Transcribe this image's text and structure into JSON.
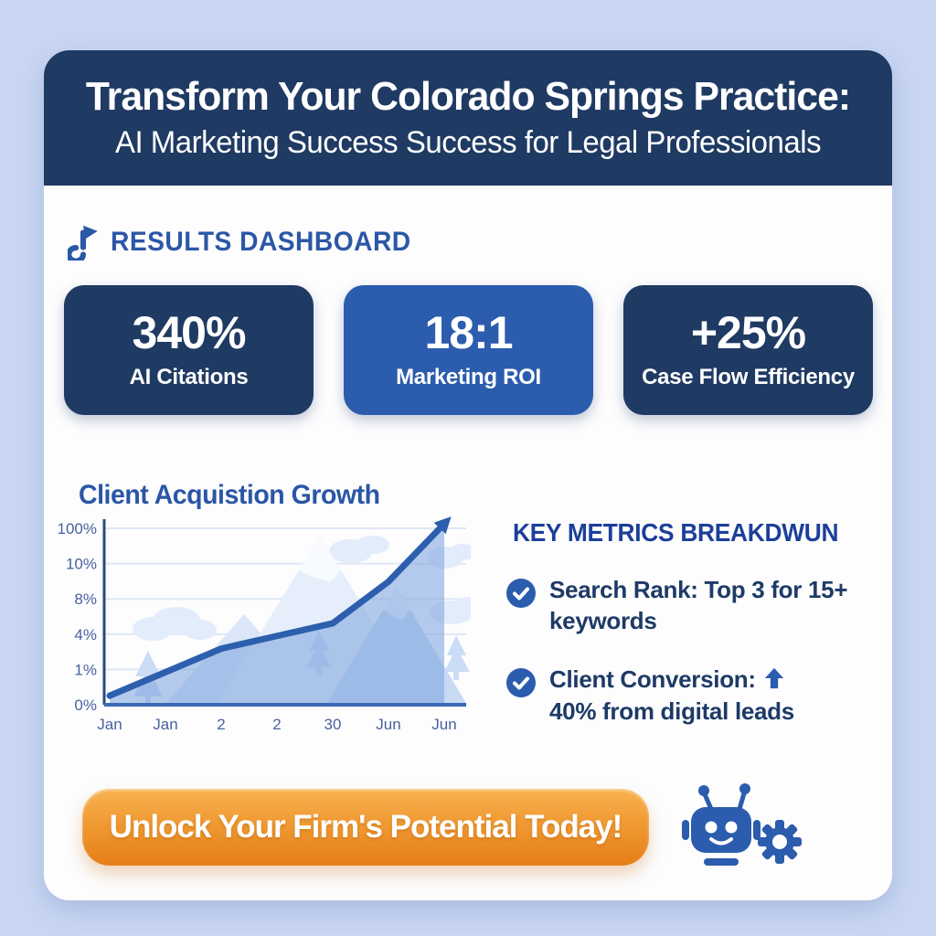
{
  "header": {
    "title": "Transform Your Colorado Springs Practice:",
    "subtitle": "AI Marketing Success Success for Legal Professionals"
  },
  "results_section": {
    "title": "RESULTS DASHBOARD",
    "icon": "note-arrow-icon"
  },
  "stats": [
    {
      "value": "340%",
      "label": "AI Citations"
    },
    {
      "value": "18:1",
      "label": "Marketing ROI"
    },
    {
      "value": "+25%",
      "label": "Case Flow Efficiency"
    }
  ],
  "chart_data": {
    "type": "area",
    "title": "Client Acquistion Growth",
    "x": [
      "Jan",
      "Jan",
      "2",
      "2",
      "30",
      "Jun",
      "Jun"
    ],
    "y_tick_labels": [
      "100%",
      "10%",
      "8%",
      "4%",
      "1%",
      "0%"
    ],
    "series": [
      {
        "name": "Client acquisition growth line",
        "values": [
          5,
          18,
          31,
          38,
          45,
          68,
          100
        ],
        "values_unit": "percent of plot height (axis labels are decorative/non-linear)"
      }
    ],
    "ylim": [
      0,
      100
    ],
    "grid": true,
    "legend": false,
    "line_color": "#2d5fae",
    "area_color": "#7fa6de",
    "annotations": [
      "line ends in an upward-pointing arrow at top right",
      "decorative mountains, clouds and pine trees in chart background"
    ]
  },
  "key_metrics": {
    "title": "KEY METRICS BREAKDWUN",
    "items": [
      {
        "line1": "Search Rank: Top 3 for 15+",
        "line2": "keywords",
        "has_up_arrow": false
      },
      {
        "line1": "Client Conversion:",
        "line2": "40% from digital leads",
        "has_up_arrow": true
      }
    ]
  },
  "cta": {
    "label": "Unlock Your Firm's Potential Today!",
    "icon": "robot-gear-icon"
  },
  "colors": {
    "page_background": "#c8d6f3",
    "card_background": "#fdfdfe",
    "navy": "#1f3a63",
    "royal_blue": "#2b5cad",
    "heading_blue": "#2a56a6",
    "metrics_heading_blue": "#1c3f99",
    "body_text_navy": "#1e3a66",
    "cta_orange_top": "#f8b251",
    "cta_orange_bottom": "#e67e17",
    "chart_line": "#2d5fae",
    "chart_area": "#7fa6de",
    "chart_grid": "#dfe7f4"
  }
}
